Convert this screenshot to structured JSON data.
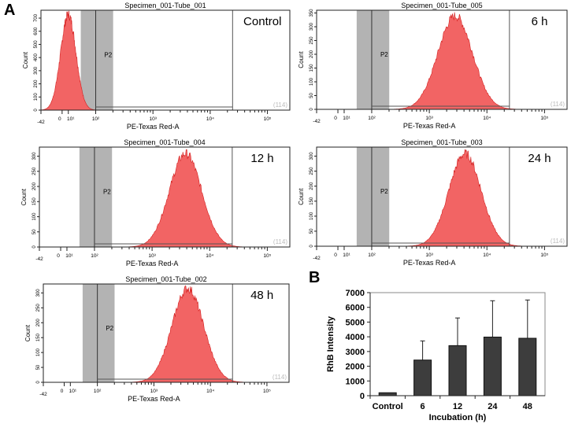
{
  "labels": {
    "a": "A",
    "b": "B"
  },
  "chart_data": [
    {
      "type": "area",
      "title": "Specimen_001-Tube_001",
      "condition": "Control",
      "xlabel": "PE-Texas Red-A",
      "ylabel": "Count",
      "gate": "P2",
      "event_count": "(114)",
      "x_ticks": [
        "-42",
        "0",
        "10¹",
        "10²",
        "10³",
        "10⁴",
        "10⁵"
      ],
      "y_ticks": [
        0,
        100,
        200,
        300,
        400,
        500,
        600,
        700
      ],
      "ylim": [
        0,
        760
      ],
      "peak_log10": 1.0,
      "sd_log10": 0.28,
      "peak_count": 750
    },
    {
      "type": "area",
      "title": "Specimen_001-Tube_005",
      "condition": "6 h",
      "xlabel": "PE-Texas Red-A",
      "ylabel": "Count",
      "gate": "P2",
      "event_count": "(114)",
      "x_ticks": [
        "-42",
        "0",
        "10¹",
        "10²",
        "10³",
        "10⁴",
        "10⁵"
      ],
      "y_ticks": [
        0,
        50,
        100,
        150,
        200,
        250,
        300,
        350
      ],
      "ylim": [
        0,
        360
      ],
      "peak_log10": 3.45,
      "sd_log10": 0.3,
      "peak_count": 350
    },
    {
      "type": "area",
      "title": "Specimen_001-Tube_004",
      "condition": "12 h",
      "xlabel": "PE-Texas Red-A",
      "ylabel": "Count",
      "gate": "P2",
      "event_count": "(114)",
      "x_ticks": [
        "-42",
        "0",
        "10¹",
        "10²",
        "10³",
        "10⁴",
        "10⁵"
      ],
      "y_ticks": [
        0,
        50,
        100,
        150,
        200,
        250,
        300
      ],
      "ylim": [
        0,
        330
      ],
      "peak_log10": 3.58,
      "sd_log10": 0.28,
      "peak_count": 318
    },
    {
      "type": "area",
      "title": "Specimen_001-Tube_003",
      "condition": "24 h",
      "xlabel": "PE-Texas Red-A",
      "ylabel": "Count",
      "gate": "P2",
      "event_count": "(114)",
      "x_ticks": [
        "-42",
        "0",
        "10¹",
        "10²",
        "10³",
        "10⁴",
        "10⁵"
      ],
      "y_ticks": [
        0,
        50,
        100,
        150,
        200,
        250,
        300
      ],
      "ylim": [
        0,
        330
      ],
      "peak_log10": 3.62,
      "sd_log10": 0.28,
      "peak_count": 318
    },
    {
      "type": "area",
      "title": "Specimen_001-Tube_002",
      "condition": "48 h",
      "xlabel": "PE-Texas Red-A",
      "ylabel": "Count",
      "gate": "P2",
      "event_count": "(114)",
      "x_ticks": [
        "-42",
        "0",
        "10¹",
        "10²",
        "10³",
        "10⁴",
        "10⁵"
      ],
      "y_ticks": [
        0,
        50,
        100,
        150,
        200,
        250,
        300
      ],
      "ylim": [
        0,
        330
      ],
      "peak_log10": 3.6,
      "sd_log10": 0.28,
      "peak_count": 325
    },
    {
      "type": "bar",
      "title": "",
      "xlabel": "Incubation (h)",
      "ylabel": "RhB Intensity",
      "categories": [
        "Control",
        "6",
        "12",
        "24",
        "48"
      ],
      "values": [
        200,
        2420,
        3400,
        3980,
        3900
      ],
      "errors": [
        0,
        1300,
        1880,
        2470,
        2600
      ],
      "ylim": [
        0,
        7000
      ],
      "y_ticks": [
        0,
        1000,
        2000,
        3000,
        4000,
        5000,
        6000,
        7000
      ],
      "grid": false
    }
  ],
  "colors": {
    "hist_fill": "#f26464",
    "hist_edge": "#d42020",
    "gate": "#b3b3b3",
    "bar": "#3d3d3d"
  }
}
